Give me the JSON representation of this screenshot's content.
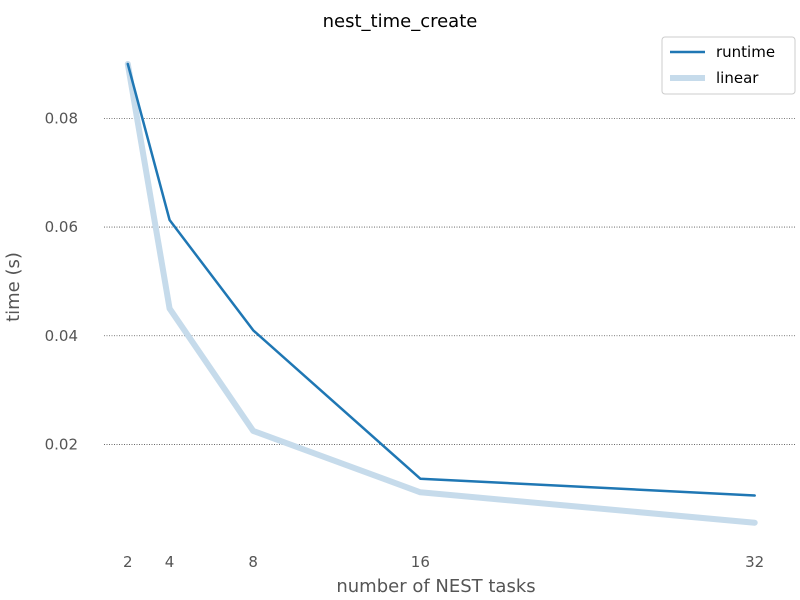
{
  "chart_data": {
    "type": "line",
    "title": "nest_time_create",
    "xlabel": "number of NEST tasks",
    "ylabel": "time (s)",
    "x": [
      2,
      4,
      8,
      16,
      32
    ],
    "xticks": [
      "2",
      "4",
      "8",
      "16",
      "32"
    ],
    "yticks": [
      "0.02",
      "0.04",
      "0.06",
      "0.08"
    ],
    "ytick_values": [
      0.02,
      0.04,
      0.06,
      0.08
    ],
    "xlim": [
      0,
      33.5
    ],
    "ylim": [
      0.0015,
      0.0935
    ],
    "grid": "y-dotted",
    "legend_position": "top-right",
    "series": [
      {
        "name": "runtime",
        "values": [
          0.09,
          0.0613,
          0.041,
          0.0137,
          0.0106
        ],
        "color": "#1f77b4"
      },
      {
        "name": "linear",
        "values": [
          0.09,
          0.045,
          0.0225,
          0.0112,
          0.0056
        ],
        "color": "#c6dbeb"
      }
    ]
  }
}
